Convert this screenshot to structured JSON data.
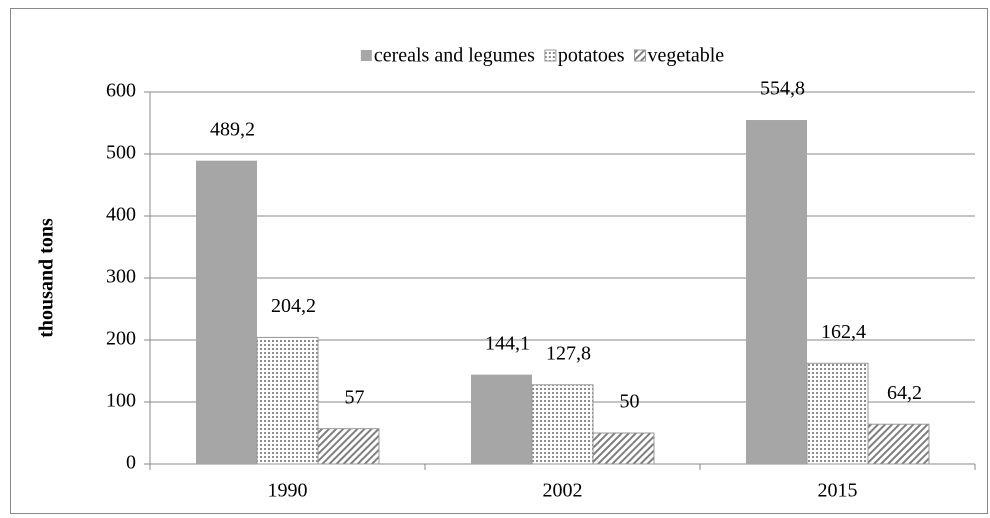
{
  "chart_data": {
    "type": "bar",
    "y_label": "thousand tons",
    "categories": [
      "1990",
      "2002",
      "2015"
    ],
    "series": [
      {
        "name": "cereals and legumes",
        "color": "#a6a6a6",
        "pattern": "solid",
        "values": [
          489.2,
          144.1,
          554.8
        ],
        "value_labels": [
          "489,2",
          "144,1",
          "554,8"
        ]
      },
      {
        "name": "potatoes",
        "color": "#8c8c8c",
        "pattern": "dots",
        "values": [
          204.2,
          127.8,
          162.4
        ],
        "value_labels": [
          "204,2",
          "127,8",
          "162,4"
        ]
      },
      {
        "name": "vegetable",
        "color": "#7f7f7f",
        "pattern": "hatch",
        "values": [
          57,
          50,
          64.2
        ],
        "value_labels": [
          "57",
          "50",
          "64,2"
        ]
      }
    ],
    "ylim": [
      0,
      600
    ],
    "yticks": [
      0,
      100,
      200,
      300,
      400,
      500,
      600
    ],
    "grid": true,
    "legend": "top"
  }
}
